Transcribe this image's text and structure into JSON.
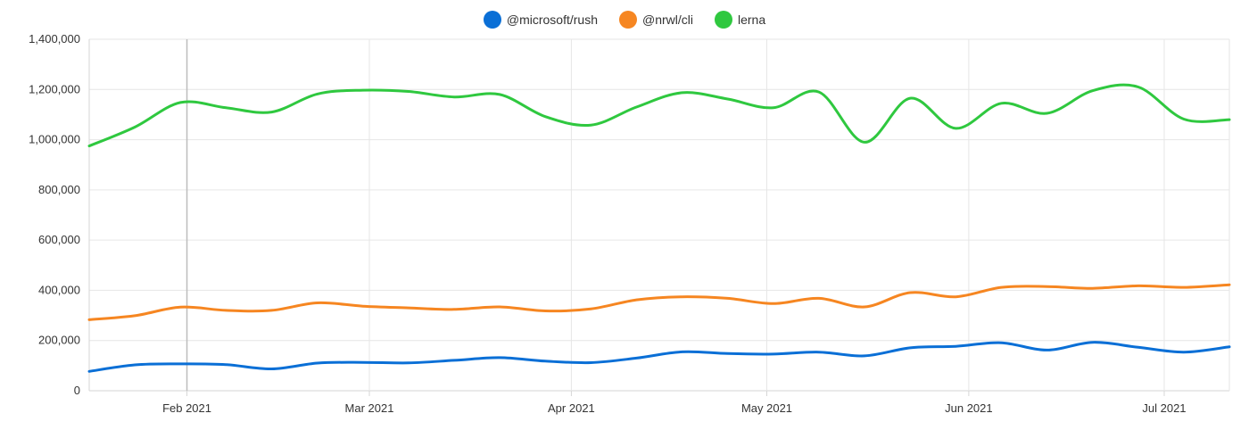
{
  "chart_data": {
    "type": "line",
    "title": "",
    "xlabel": "",
    "ylabel": "",
    "legend_position": "top-center",
    "grid": true,
    "ylim": [
      0,
      1400000
    ],
    "y_ticks": [
      0,
      200000,
      400000,
      600000,
      800000,
      1000000,
      1200000,
      1400000
    ],
    "y_tick_labels": [
      "0",
      "200,000",
      "400,000",
      "600,000",
      "800,000",
      "1,000,000",
      "1,200,000",
      "1,400,000"
    ],
    "xlim": [
      "2021-01-17",
      "2021-07-11"
    ],
    "x_ticks": [
      "2021-02-01",
      "2021-03-01",
      "2021-04-01",
      "2021-05-01",
      "2021-06-01",
      "2021-07-01"
    ],
    "x_tick_labels": [
      "Feb 2021",
      "Mar 2021",
      "Apr 2021",
      "May 2021",
      "Jun 2021",
      "Jul 2021"
    ],
    "x": [
      "2021-01-17",
      "2021-01-24",
      "2021-01-31",
      "2021-02-07",
      "2021-02-14",
      "2021-02-21",
      "2021-02-28",
      "2021-03-07",
      "2021-03-14",
      "2021-03-21",
      "2021-03-28",
      "2021-04-04",
      "2021-04-11",
      "2021-04-18",
      "2021-04-25",
      "2021-05-02",
      "2021-05-09",
      "2021-05-16",
      "2021-05-23",
      "2021-05-30",
      "2021-06-06",
      "2021-06-13",
      "2021-06-20",
      "2021-06-27",
      "2021-07-04",
      "2021-07-11"
    ],
    "series": [
      {
        "name": "@microsoft/rush",
        "color": "#0a6fd6",
        "values": [
          77000,
          103000,
          107000,
          104000,
          87000,
          110000,
          113000,
          111000,
          121000,
          132000,
          118000,
          112000,
          130000,
          155000,
          148000,
          146000,
          154000,
          139000,
          171000,
          177000,
          191000,
          162000,
          193000,
          173000,
          154000,
          175000
        ]
      },
      {
        "name": "@nrwl/cli",
        "color": "#f68621",
        "values": [
          283000,
          299000,
          333000,
          320000,
          320000,
          350000,
          337000,
          330000,
          324000,
          334000,
          318000,
          326000,
          362000,
          374000,
          368000,
          347000,
          368000,
          334000,
          391000,
          374000,
          412000,
          415000,
          408000,
          418000,
          412000,
          422000
        ]
      },
      {
        "name": "lerna",
        "color": "#2fc83f",
        "values": [
          975000,
          1050000,
          1148000,
          1127000,
          1110000,
          1182000,
          1197000,
          1192000,
          1170000,
          1180000,
          1092000,
          1058000,
          1130000,
          1187000,
          1162000,
          1127000,
          1190000,
          990000,
          1165000,
          1045000,
          1145000,
          1105000,
          1195000,
          1210000,
          1082000,
          1080000
        ]
      }
    ]
  }
}
